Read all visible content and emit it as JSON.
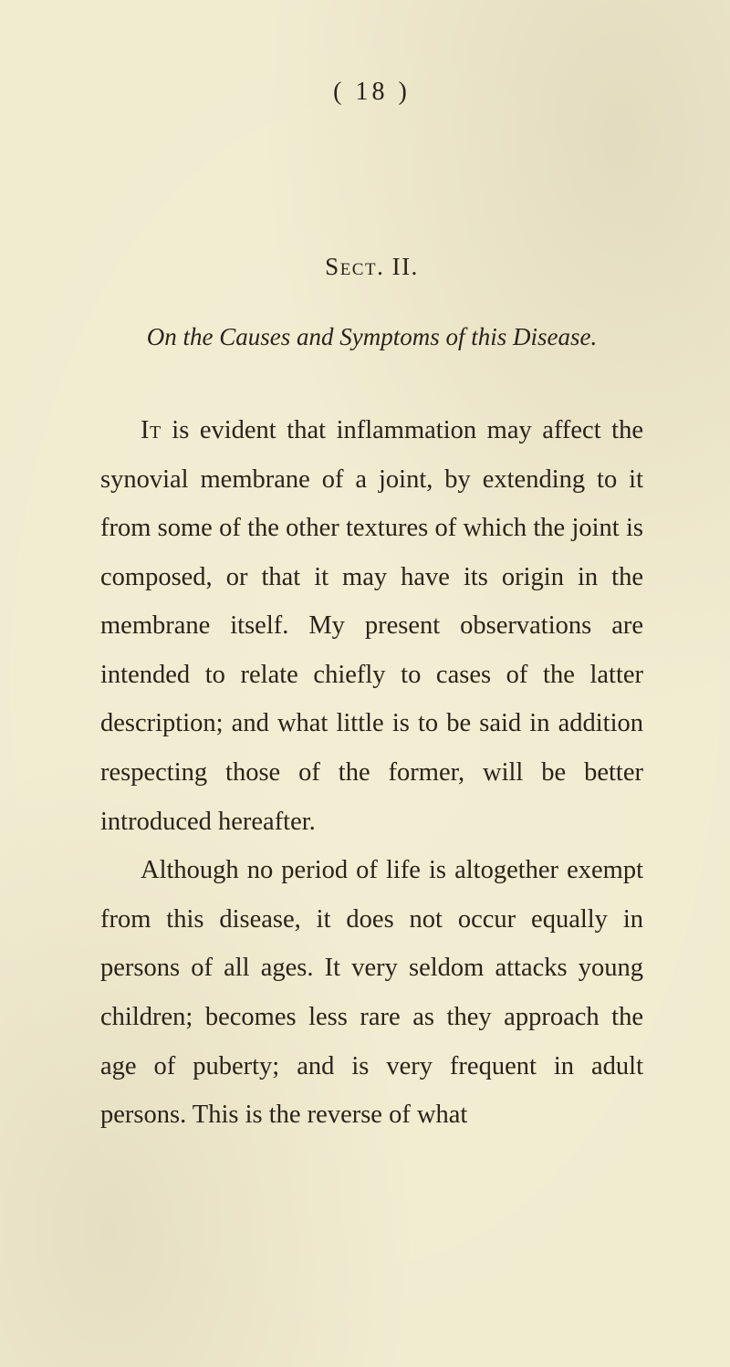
{
  "colors": {
    "page_bg": "#f1ebd0",
    "ink": "#2b2318"
  },
  "typography": {
    "body_fontsize_pt": 21,
    "body_line_height": 1.88,
    "heading_fontsize_pt": 20,
    "font_family": "Times New Roman / old-style serif"
  },
  "page_number": "(  18  )",
  "section_label": "Sect. II.",
  "subtitle": "On the Causes and Symptoms of this Disease.",
  "body": {
    "p1_lead": "It",
    "p1_rest": " is evident that inflammation may affect the synovial membrane of a joint, by extending to it from some of the other textures of which the joint is composed, or that it may have its origin in the membrane itself. My present observations are intended to relate chiefly to cases of the latter description; and what little is to be said in addition respecting those of the former, will be better introduced hereafter.",
    "p2": "Although no period of life is altogether exempt from this disease, it does not occur equally in persons of all ages. It very seldom attacks young children; becomes less rare as they approach the age of puberty; and is very frequent in adult persons. This is the reverse of what"
  }
}
